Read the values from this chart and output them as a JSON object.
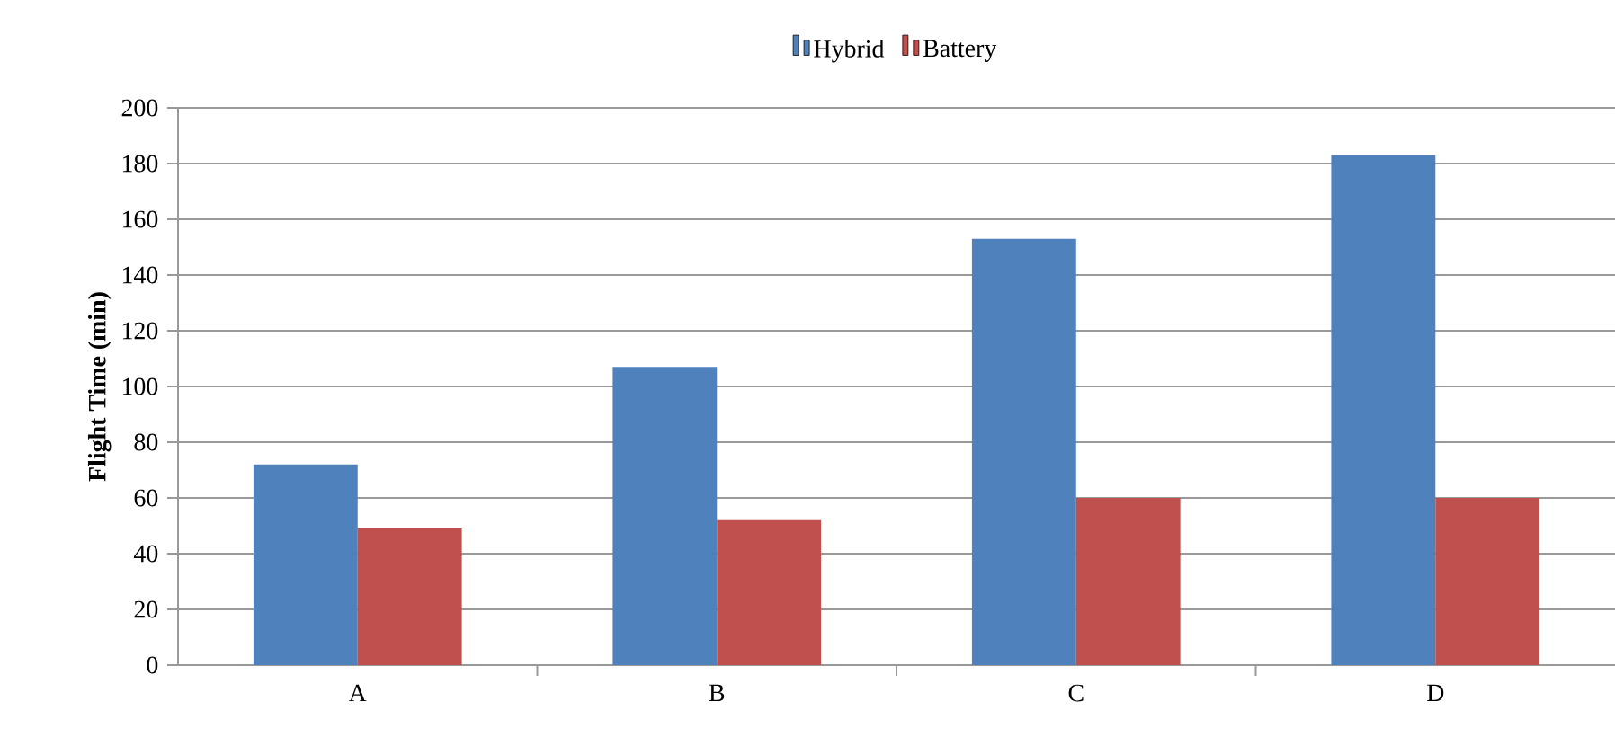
{
  "chart_data": {
    "type": "bar",
    "ylabel": "**Flight Time (min)**",
    "categories": [
      "A",
      "B",
      "C",
      "D"
    ],
    "series": [
      {
        "name": "Hybrid",
        "color": "#4f81bd",
        "values": [
          72,
          107,
          153,
          183
        ]
      },
      {
        "name": "Battery",
        "color": "#c0504d",
        "values": [
          49,
          52,
          60,
          60
        ]
      }
    ],
    "ylim": [
      0,
      200
    ],
    "yticks": [
      0,
      20,
      40,
      60,
      80,
      100,
      120,
      140,
      160,
      180,
      200
    ],
    "grid": "y",
    "legend": "top"
  }
}
